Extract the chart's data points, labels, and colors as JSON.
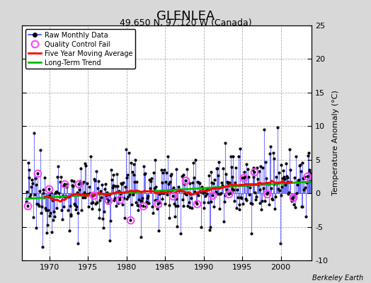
{
  "title": "GLENLEA",
  "subtitle": "49.650 N, 97.120 W (Canada)",
  "ylabel": "Temperature Anomaly (°C)",
  "credit": "Berkeley Earth",
  "ylim": [
    -10,
    25
  ],
  "yticks": [
    -10,
    -5,
    0,
    5,
    10,
    15,
    20,
    25
  ],
  "xlim": [
    1966.5,
    2004.0
  ],
  "xticks": [
    1970,
    1975,
    1980,
    1985,
    1990,
    1995,
    2000
  ],
  "bg_color": "#d8d8d8",
  "plot_bg_color": "#ffffff",
  "grid_color": "#b0b0b0",
  "raw_line_color": "#4444ff",
  "raw_dot_color": "#000000",
  "moving_avg_color": "#ff0000",
  "trend_color": "#00bb00",
  "qc_fail_color": "#ff44ff",
  "title_fontsize": 13,
  "subtitle_fontsize": 9,
  "tick_fontsize": 8,
  "ylabel_fontsize": 8
}
